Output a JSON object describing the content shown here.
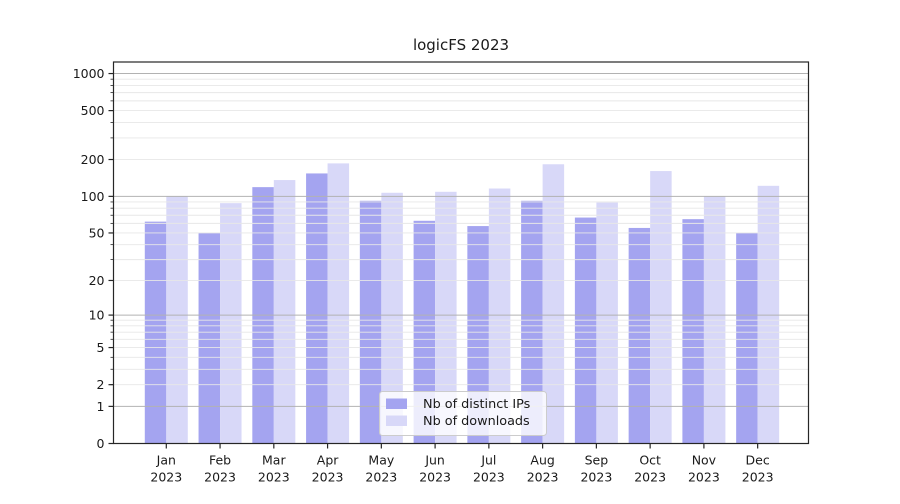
{
  "title": "logicFS 2023",
  "chart_data": {
    "type": "bar",
    "title": "logicFS 2023",
    "xlabel": "",
    "ylabel": "",
    "yscale": "log1p",
    "ylim": [
      0,
      1250
    ],
    "grid": true,
    "legend_position": "lower center",
    "categories": [
      "Jan",
      "Feb",
      "Mar",
      "Apr",
      "May",
      "Jun",
      "Jul",
      "Aug",
      "Sep",
      "Oct",
      "Nov",
      "Dec"
    ],
    "category_year": "2023",
    "y_tick_labels": [
      0,
      1,
      2,
      5,
      10,
      20,
      50,
      100,
      200,
      500,
      1000
    ],
    "y_major_gridlines": [
      1,
      10,
      100,
      1000
    ],
    "series": [
      {
        "name": "Nb of distinct IPs",
        "color": "#a4a4f0",
        "values": [
          62,
          50,
          119,
          154,
          92,
          63,
          57,
          92,
          67,
          55,
          65,
          50
        ]
      },
      {
        "name": "Nb of downloads",
        "color": "#d8d8f8",
        "values": [
          100,
          88,
          136,
          186,
          107,
          109,
          116,
          183,
          89,
          161,
          100,
          122
        ]
      }
    ],
    "colors": {
      "axis": "#262626",
      "major_grid": "#b2b2b2",
      "minor_grid": "#e7e7e7",
      "legend_border": "#cccccc"
    }
  }
}
